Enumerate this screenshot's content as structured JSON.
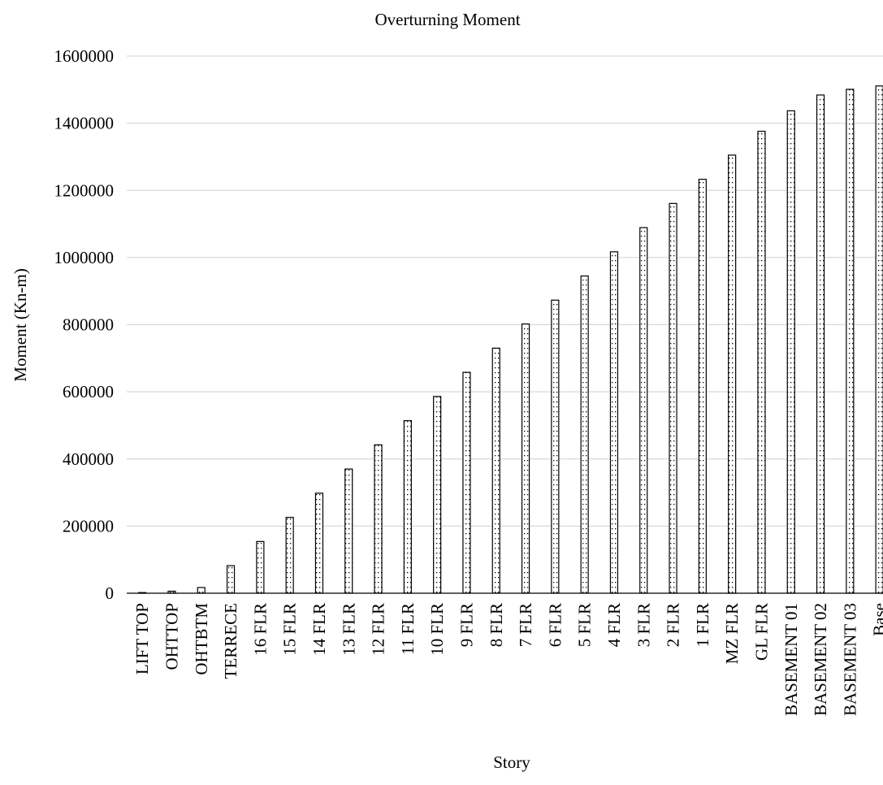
{
  "chart_data": {
    "type": "bar",
    "title": "Overturning Moment",
    "xlabel": "Story",
    "ylabel": "Moment (Kn-m)",
    "ylim": [
      0,
      1600000
    ],
    "yticks": [
      0,
      200000,
      400000,
      600000,
      800000,
      1000000,
      1200000,
      1400000,
      1600000
    ],
    "ytick_labels": [
      "0",
      "200000",
      "400000",
      "600000",
      "800000",
      "1000000",
      "1200000",
      "1400000",
      "1600000"
    ],
    "grid": true,
    "legend": "none",
    "bar_fill": "dotted",
    "categories": [
      "LIFT TOP",
      "OHTTOP",
      "OHTBTM",
      "TERRECE",
      "16 FLR",
      "15 FLR",
      "14 FLR",
      "13 FLR",
      "12 FLR",
      "11 FLR",
      "10 FLR",
      "9 FLR",
      "8 FLR",
      "7 FLR",
      "6 FLR",
      "5 FLR",
      "4 FLR",
      "3 FLR",
      "2 FLR",
      "1 FLR",
      "MZ FLR",
      "GL FLR",
      "BASEMENT 01",
      "BASEMENT 02",
      "BASEMENT 03",
      "Base"
    ],
    "values": [
      1500,
      6000,
      17000,
      82000,
      154000,
      226000,
      298000,
      370000,
      442000,
      514000,
      586000,
      658000,
      730000,
      802000,
      873000,
      945000,
      1017000,
      1089000,
      1161000,
      1233000,
      1305000,
      1376000,
      1437000,
      1484000,
      1501000,
      1511000
    ]
  },
  "colors": {
    "bar_stroke": "#000000",
    "bar_fill": "#ffffff",
    "dots": "#000000",
    "grid": "#d9d9d9",
    "axis": "#000000"
  }
}
